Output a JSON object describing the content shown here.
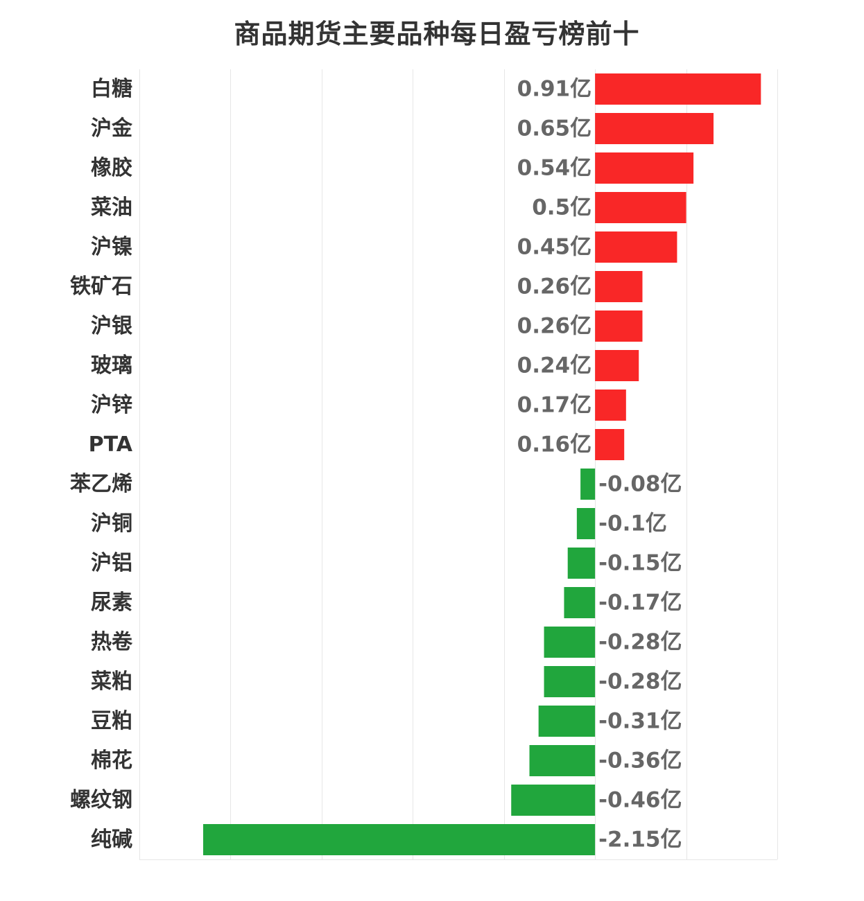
{
  "chart_data": {
    "type": "bar",
    "orientation": "horizontal",
    "title": "商品期货主要品种每日盈亏榜前十",
    "unit": "亿",
    "categories": [
      "白糖",
      "沪金",
      "橡胶",
      "菜油",
      "沪镍",
      "铁矿石",
      "沪银",
      "玻璃",
      "沪锌",
      "PTA",
      "苯乙烯",
      "沪铜",
      "沪铝",
      "尿素",
      "热卷",
      "菜粕",
      "豆粕",
      "棉花",
      "螺纹钢",
      "纯碱"
    ],
    "values": [
      0.91,
      0.65,
      0.54,
      0.5,
      0.45,
      0.26,
      0.26,
      0.24,
      0.17,
      0.16,
      -0.08,
      -0.1,
      -0.15,
      -0.17,
      -0.28,
      -0.28,
      -0.31,
      -0.36,
      -0.46,
      -2.15
    ],
    "value_labels": [
      "0.91亿",
      "0.65亿",
      "0.54亿",
      "0.5亿",
      "0.45亿",
      "0.26亿",
      "0.26亿",
      "0.24亿",
      "0.17亿",
      "0.16亿",
      "-0.08亿",
      "-0.1亿",
      "-0.15亿",
      "-0.17亿",
      "-0.28亿",
      "-0.28亿",
      "-0.31亿",
      "-0.36亿",
      "-0.46亿",
      "-2.15亿"
    ],
    "xlim": [
      -2.5,
      1
    ],
    "grid": true,
    "colors": {
      "positive": "#f92727",
      "negative": "#21a63d",
      "grid": "#e6e6e6"
    }
  }
}
